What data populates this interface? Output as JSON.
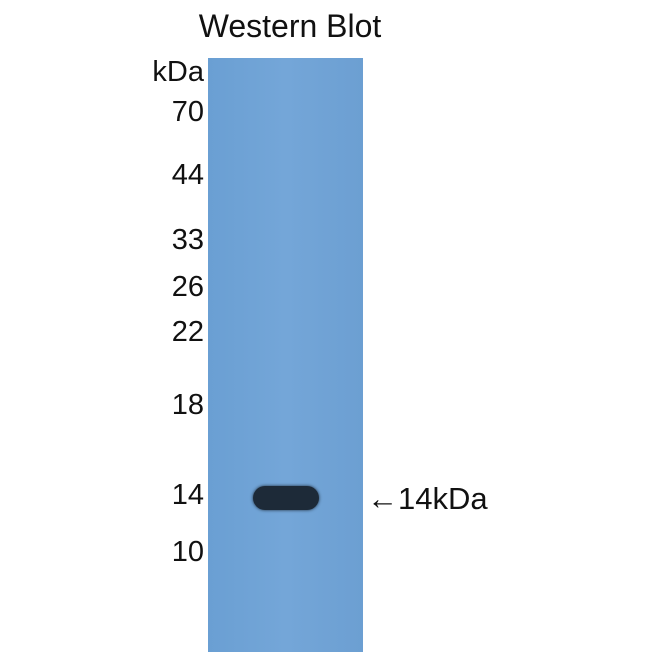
{
  "title": "Western Blot",
  "unit_label": "kDa",
  "markers": [
    "70",
    "44",
    "33",
    "26",
    "22",
    "18",
    "14",
    "10"
  ],
  "band_annotation": "←14kDa",
  "colors": {
    "lane": "#6fa3d6",
    "band": "#1d2a38"
  }
}
